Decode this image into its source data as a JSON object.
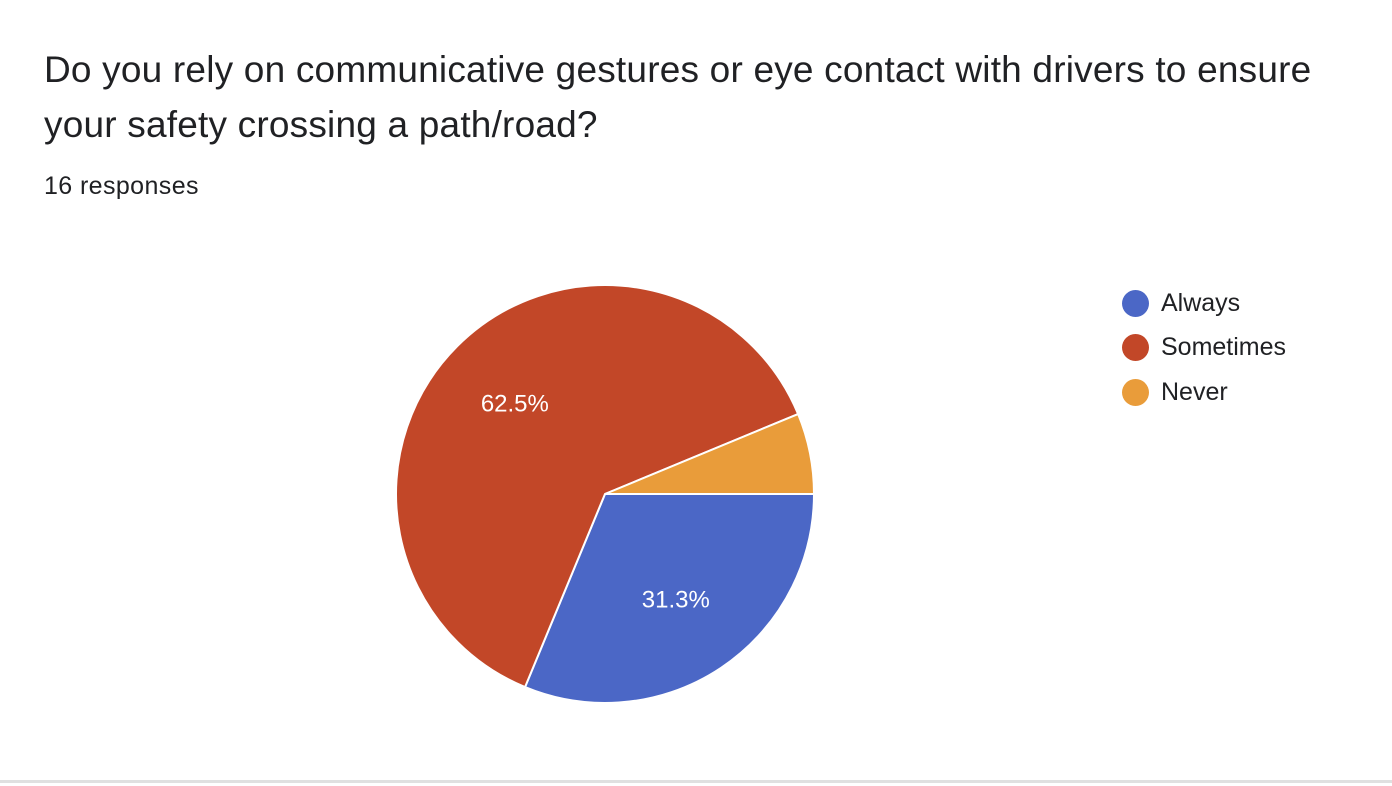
{
  "question": {
    "title": "Do you rely on communicative gestures or eye contact with drivers to ensure your safety crossing a path/road?",
    "response_count": "16 responses"
  },
  "chart_data": {
    "type": "pie",
    "slices": [
      {
        "label": "Always",
        "count": 5,
        "percent": 31.3,
        "percent_label": "31.3%",
        "color": "#4b67c6"
      },
      {
        "label": "Sometimes",
        "count": 10,
        "percent": 62.5,
        "percent_label": "62.5%",
        "color": "#c24728"
      },
      {
        "label": "Never",
        "count": 1,
        "percent": 6.3,
        "percent_label": "",
        "color": "#e99c3a"
      }
    ],
    "legend": {
      "placement": "right",
      "entries": [
        "Always",
        "Sometimes",
        "Never"
      ]
    }
  }
}
